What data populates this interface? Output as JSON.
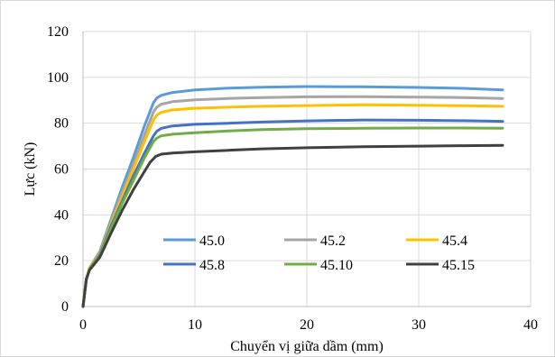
{
  "chart_data": {
    "type": "line",
    "title": "",
    "xlabel": "Chuyển vị giữa dầm (mm)",
    "ylabel": "Lực (kN)",
    "xlim": [
      0,
      40
    ],
    "ylim": [
      0,
      120
    ],
    "xticks": [
      0,
      10,
      20,
      30,
      40
    ],
    "yticks": [
      0,
      20,
      40,
      60,
      80,
      100,
      120
    ],
    "grid": true,
    "legend_position": "bottom-right (inside plot, 3 columns)",
    "series": [
      {
        "name": "45.0",
        "color": "#5B9BD5",
        "x": [
          0,
          0.3,
          0.6,
          1.5,
          2.5,
          3.5,
          4.5,
          5.5,
          6.3,
          6.6,
          7.0,
          8.0,
          10,
          13,
          16,
          20,
          25,
          30,
          34,
          37.5
        ],
        "y": [
          0,
          12,
          17,
          24,
          38,
          52,
          65,
          79,
          89,
          91,
          92.2,
          93.4,
          94.5,
          95.3,
          95.7,
          96.0,
          95.9,
          95.6,
          95.2,
          94.5
        ]
      },
      {
        "name": "45.2",
        "color": "#A5A5A5",
        "x": [
          0,
          0.3,
          0.6,
          1.5,
          2.5,
          3.5,
          4.5,
          5.5,
          6.3,
          6.6,
          7.0,
          8.0,
          10,
          13,
          16,
          20,
          25,
          30,
          34,
          37.5
        ],
        "y": [
          0,
          12,
          17,
          23.5,
          37,
          50,
          62,
          75,
          85,
          87,
          88.3,
          89.4,
          90.2,
          90.8,
          91.2,
          91.5,
          91.6,
          91.4,
          91.2,
          90.8
        ]
      },
      {
        "name": "45.4",
        "color": "#FFC000",
        "x": [
          0,
          0.3,
          0.6,
          1.5,
          2.5,
          3.5,
          4.5,
          5.5,
          6.3,
          6.6,
          7.0,
          8.0,
          10,
          13,
          16,
          20,
          25,
          30,
          34,
          37.5
        ],
        "y": [
          0,
          12,
          17,
          23,
          36,
          48,
          60,
          72,
          81.5,
          83.5,
          84.8,
          85.8,
          86.5,
          87.0,
          87.4,
          87.7,
          88.0,
          87.8,
          87.6,
          87.4
        ]
      },
      {
        "name": "45.8",
        "color": "#4472C4",
        "x": [
          0,
          0.3,
          0.6,
          1.5,
          2.5,
          3.5,
          4.5,
          5.5,
          6.3,
          6.6,
          7.0,
          8.0,
          10,
          13,
          16,
          20,
          25,
          30,
          34,
          37.5
        ],
        "y": [
          0,
          12,
          16.5,
          22.5,
          35,
          46,
          57,
          67,
          74.5,
          76.5,
          77.8,
          78.8,
          79.5,
          80.0,
          80.5,
          81.0,
          81.4,
          81.3,
          81.1,
          80.8
        ]
      },
      {
        "name": "45.10",
        "color": "#70AD47",
        "x": [
          0,
          0.3,
          0.6,
          1.5,
          2.5,
          3.5,
          4.5,
          5.5,
          6.3,
          6.6,
          7.0,
          8.0,
          10,
          13,
          16,
          20,
          25,
          30,
          34,
          37.5
        ],
        "y": [
          0,
          12,
          16.5,
          22,
          34,
          45,
          55,
          65,
          72,
          73.5,
          74.5,
          75.2,
          75.8,
          76.6,
          77.2,
          77.6,
          77.8,
          77.9,
          77.9,
          77.8
        ]
      },
      {
        "name": "45.15",
        "color": "#404040",
        "x": [
          0,
          0.3,
          0.6,
          1.5,
          2.5,
          3.5,
          4.5,
          5.5,
          6.0,
          6.5,
          7.0,
          8.0,
          10,
          13,
          16,
          20,
          25,
          30,
          34,
          37.5
        ],
        "y": [
          0,
          12,
          16,
          21.5,
          32,
          42,
          51,
          59,
          63,
          65.5,
          66.5,
          67.0,
          67.5,
          68.2,
          68.8,
          69.3,
          69.7,
          70.0,
          70.2,
          70.3
        ]
      }
    ]
  }
}
